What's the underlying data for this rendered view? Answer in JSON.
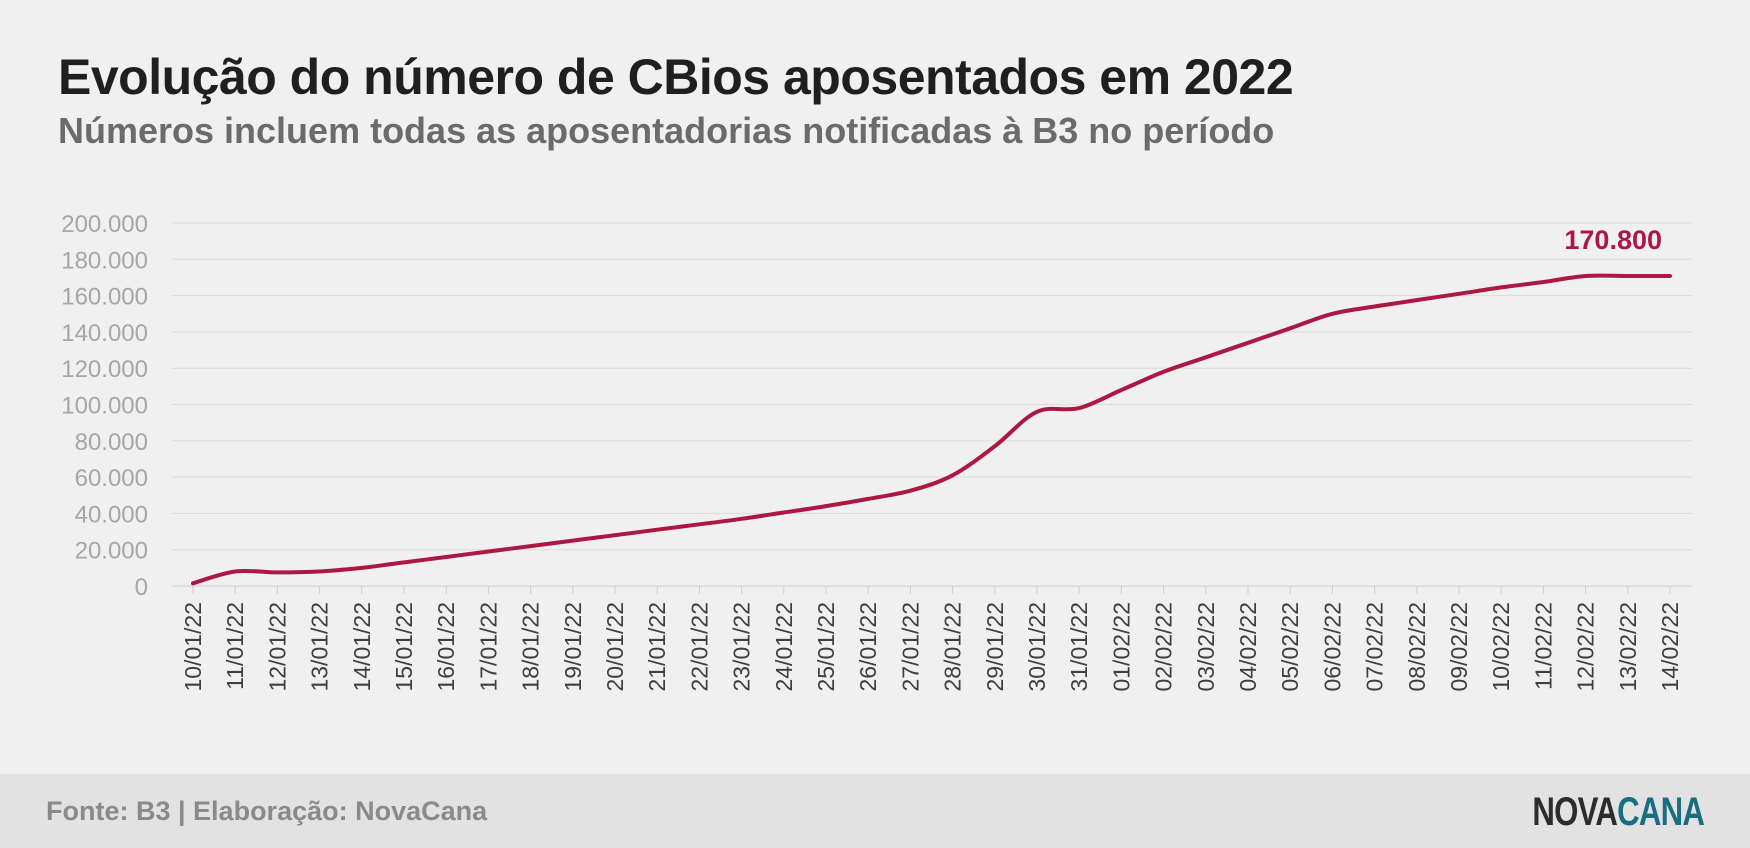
{
  "header": {
    "title": "Evolução do número de CBios aposentados em 2022",
    "subtitle": "Números incluem todas as aposentadorias notificadas à B3 no período"
  },
  "footer": {
    "source": "Fonte: B3 | Elaboração: NovaCana",
    "logo_part1": "NOVA",
    "logo_part2": "CANA"
  },
  "colors": {
    "line": "#ad1842",
    "logo_dark": "#2c2c2c",
    "logo_teal": "#1a6e82",
    "grid": "#dcdcdc",
    "tick": "#a6a6a6",
    "xtick": "#3f3f3f"
  },
  "chart_data": {
    "type": "line",
    "title": "Evolução do número de CBios aposentados em 2022",
    "subtitle": "Números incluem todas as aposentadorias notificadas à B3 no período",
    "xlabel": "",
    "ylabel": "",
    "ylim": [
      0,
      200000
    ],
    "yticks": [
      0,
      20000,
      40000,
      60000,
      80000,
      100000,
      120000,
      140000,
      160000,
      180000,
      200000
    ],
    "ytick_labels": [
      "0",
      "20.000",
      "40.000",
      "60.000",
      "80.000",
      "100.000",
      "120.000",
      "140.000",
      "160.000",
      "180.000",
      "200.000"
    ],
    "grid": true,
    "legend": "none",
    "categories": [
      "10/01/22",
      "11/01/22",
      "12/01/22",
      "13/01/22",
      "14/01/22",
      "15/01/22",
      "16/01/22",
      "17/01/22",
      "18/01/22",
      "19/01/22",
      "20/01/22",
      "21/01/22",
      "22/01/22",
      "23/01/22",
      "24/01/22",
      "25/01/22",
      "26/01/22",
      "27/01/22",
      "28/01/22",
      "29/01/22",
      "30/01/22",
      "31/01/22",
      "01/02/22",
      "02/02/22",
      "03/02/22",
      "04/02/22",
      "05/02/22",
      "06/02/22",
      "07/02/22",
      "08/02/22",
      "09/02/22",
      "10/02/22",
      "11/02/22",
      "12/02/22",
      "13/02/22",
      "14/02/22"
    ],
    "values": [
      1500,
      8000,
      7500,
      8000,
      10000,
      13000,
      16000,
      19000,
      22000,
      25000,
      28000,
      31000,
      34000,
      37000,
      40500,
      44000,
      48000,
      52500,
      61000,
      77000,
      96000,
      98000,
      108000,
      118000,
      126000,
      134000,
      142000,
      150000,
      154000,
      157500,
      161000,
      164500,
      167500,
      170800,
      170800,
      170800
    ],
    "annotation": "170.800"
  }
}
